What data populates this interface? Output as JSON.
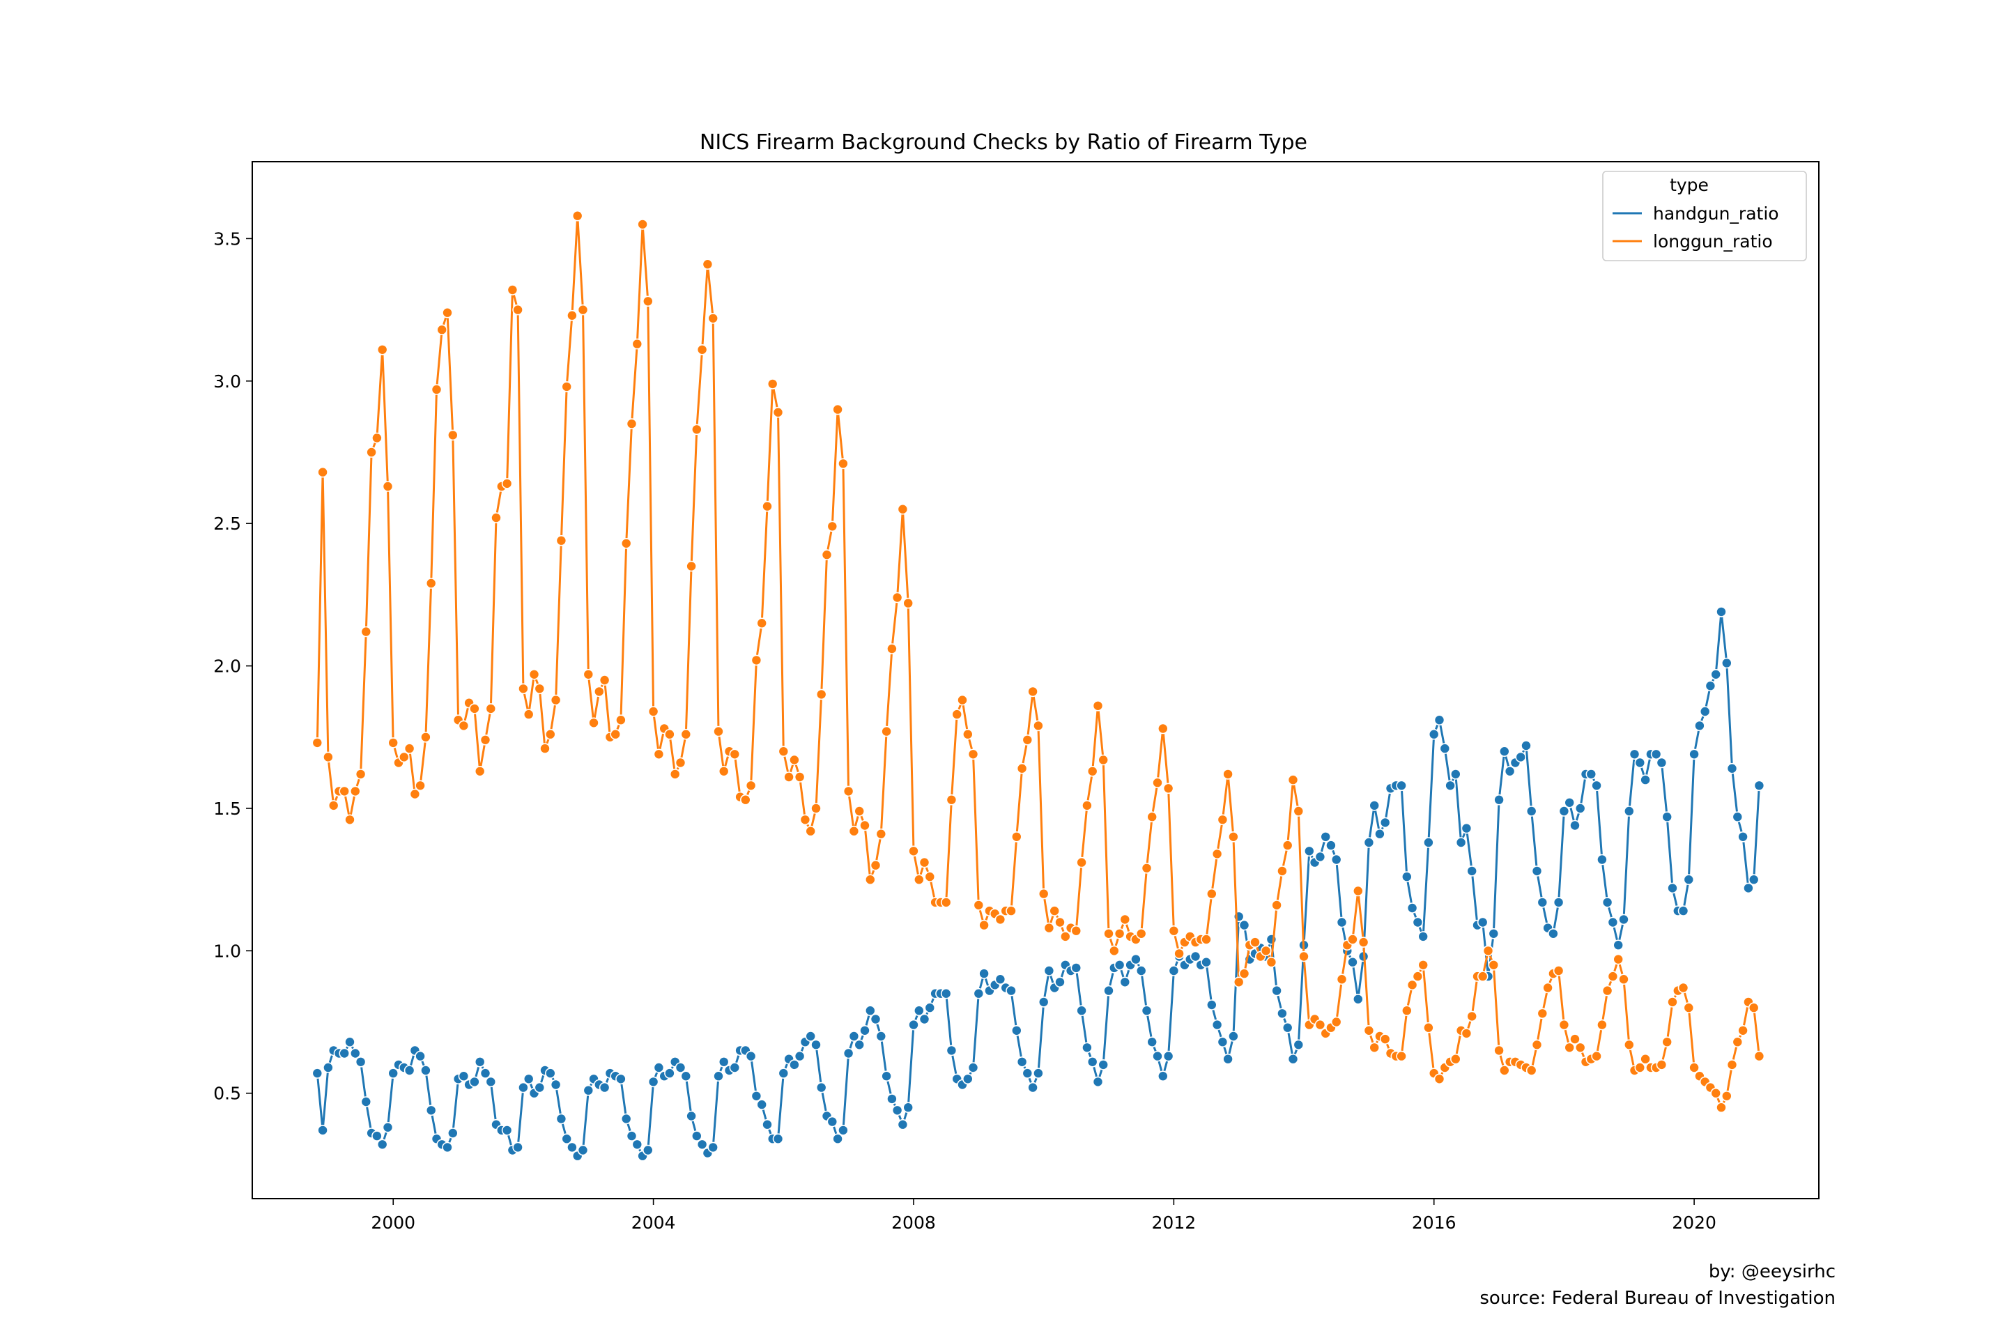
{
  "chart_data": {
    "type": "line",
    "title": "NICS Firearm Background Checks by Ratio of Firearm Type",
    "xlabel": "",
    "ylabel": "",
    "x_ticks": [
      "2000",
      "2004",
      "2008",
      "2012",
      "2016",
      "2020"
    ],
    "y_ticks": [
      "0.5",
      "1.0",
      "1.5",
      "2.0",
      "2.5",
      "3.0",
      "3.5"
    ],
    "ylim": [
      0.13,
      3.77
    ],
    "xlim": [
      "1997-11",
      "2021-12"
    ],
    "x_start": "1998-11",
    "x_end": "2021-01",
    "x_frequency": "monthly",
    "grid": false,
    "marker": "circle",
    "legend": {
      "title": "type",
      "position": "top-right"
    },
    "series": [
      {
        "name": "handgun_ratio",
        "color": "#1f77b4",
        "values": [
          0.57,
          0.37,
          0.59,
          0.65,
          0.64,
          0.64,
          0.68,
          0.64,
          0.61,
          0.47,
          0.36,
          0.35,
          0.32,
          0.38,
          0.57,
          0.6,
          0.59,
          0.58,
          0.65,
          0.63,
          0.58,
          0.44,
          0.34,
          0.32,
          0.31,
          0.36,
          0.55,
          0.56,
          0.53,
          0.54,
          0.61,
          0.57,
          0.54,
          0.39,
          0.37,
          0.37,
          0.3,
          0.31,
          0.52,
          0.55,
          0.5,
          0.52,
          0.58,
          0.57,
          0.53,
          0.41,
          0.34,
          0.31,
          0.28,
          0.3,
          0.51,
          0.55,
          0.53,
          0.52,
          0.57,
          0.56,
          0.55,
          0.41,
          0.35,
          0.32,
          0.28,
          0.3,
          0.54,
          0.59,
          0.56,
          0.57,
          0.61,
          0.59,
          0.56,
          0.42,
          0.35,
          0.32,
          0.29,
          0.31,
          0.56,
          0.61,
          0.58,
          0.59,
          0.65,
          0.65,
          0.63,
          0.49,
          0.46,
          0.39,
          0.34,
          0.34,
          0.57,
          0.62,
          0.6,
          0.63,
          0.68,
          0.7,
          0.67,
          0.52,
          0.42,
          0.4,
          0.34,
          0.37,
          0.64,
          0.7,
          0.67,
          0.72,
          0.79,
          0.76,
          0.7,
          0.56,
          0.48,
          0.44,
          0.39,
          0.45,
          0.74,
          0.79,
          0.76,
          0.8,
          0.85,
          0.85,
          0.85,
          0.65,
          0.55,
          0.53,
          0.55,
          0.59,
          0.85,
          0.92,
          0.86,
          0.88,
          0.9,
          0.87,
          0.86,
          0.72,
          0.61,
          0.57,
          0.52,
          0.57,
          0.82,
          0.93,
          0.87,
          0.89,
          0.95,
          0.93,
          0.94,
          0.79,
          0.66,
          0.61,
          0.54,
          0.6,
          0.86,
          0.94,
          0.95,
          0.89,
          0.95,
          0.97,
          0.93,
          0.79,
          0.68,
          0.63,
          0.56,
          0.63,
          0.93,
          0.98,
          0.95,
          0.97,
          0.98,
          0.95,
          0.96,
          0.81,
          0.74,
          0.68,
          0.62,
          0.7,
          1.12,
          1.09,
          0.97,
          0.99,
          1.01,
          0.98,
          1.04,
          0.86,
          0.78,
          0.73,
          0.62,
          0.67,
          1.02,
          1.35,
          1.31,
          1.33,
          1.4,
          1.37,
          1.32,
          1.1,
          1.0,
          0.96,
          0.83,
          0.98,
          1.38,
          1.51,
          1.41,
          1.45,
          1.57,
          1.58,
          1.58,
          1.26,
          1.15,
          1.1,
          1.05,
          1.38,
          1.76,
          1.81,
          1.71,
          1.58,
          1.62,
          1.38,
          1.43,
          1.28,
          1.09,
          1.1,
          0.91,
          1.06,
          1.53,
          1.7,
          1.63,
          1.66,
          1.68,
          1.72,
          1.49,
          1.28,
          1.17,
          1.08,
          1.06,
          1.17,
          1.49,
          1.52,
          1.44,
          1.5,
          1.62,
          1.62,
          1.58,
          1.32,
          1.17,
          1.1,
          1.02,
          1.11,
          1.49,
          1.69,
          1.66,
          1.6,
          1.69,
          1.69,
          1.66,
          1.47,
          1.22,
          1.14,
          1.14,
          1.25,
          1.69,
          1.79,
          1.84,
          1.93,
          1.97,
          2.19,
          2.01,
          1.64,
          1.47,
          1.4,
          1.22,
          1.25,
          1.58
        ]
      },
      {
        "name": "longgun_ratio",
        "color": "#ff7f0e",
        "values": [
          1.73,
          2.68,
          1.68,
          1.51,
          1.56,
          1.56,
          1.46,
          1.56,
          1.62,
          2.12,
          2.75,
          2.8,
          3.11,
          2.63,
          1.73,
          1.66,
          1.68,
          1.71,
          1.55,
          1.58,
          1.75,
          2.29,
          2.97,
          3.18,
          3.24,
          2.81,
          1.81,
          1.79,
          1.87,
          1.85,
          1.63,
          1.74,
          1.85,
          2.52,
          2.63,
          2.64,
          3.32,
          3.25,
          1.92,
          1.83,
          1.97,
          1.92,
          1.71,
          1.76,
          1.88,
          2.44,
          2.98,
          3.23,
          3.58,
          3.25,
          1.97,
          1.8,
          1.91,
          1.95,
          1.75,
          1.76,
          1.81,
          2.43,
          2.85,
          3.13,
          3.55,
          3.28,
          1.84,
          1.69,
          1.78,
          1.76,
          1.62,
          1.66,
          1.76,
          2.35,
          2.83,
          3.11,
          3.41,
          3.22,
          1.77,
          1.63,
          1.7,
          1.69,
          1.54,
          1.53,
          1.58,
          2.02,
          2.15,
          2.56,
          2.99,
          2.89,
          1.7,
          1.61,
          1.67,
          1.61,
          1.46,
          1.42,
          1.5,
          1.9,
          2.39,
          2.49,
          2.9,
          2.71,
          1.56,
          1.42,
          1.49,
          1.44,
          1.25,
          1.3,
          1.41,
          1.77,
          2.06,
          2.24,
          2.55,
          2.22,
          1.35,
          1.25,
          1.31,
          1.26,
          1.17,
          1.17,
          1.17,
          1.53,
          1.83,
          1.88,
          1.76,
          1.69,
          1.16,
          1.09,
          1.14,
          1.13,
          1.11,
          1.14,
          1.14,
          1.4,
          1.64,
          1.74,
          1.91,
          1.79,
          1.2,
          1.08,
          1.14,
          1.1,
          1.05,
          1.08,
          1.07,
          1.31,
          1.51,
          1.63,
          1.86,
          1.67,
          1.06,
          1.0,
          1.06,
          1.11,
          1.05,
          1.04,
          1.06,
          1.29,
          1.47,
          1.59,
          1.78,
          1.57,
          1.07,
          0.99,
          1.03,
          1.05,
          1.03,
          1.04,
          1.04,
          1.2,
          1.34,
          1.46,
          1.62,
          1.4,
          0.89,
          0.92,
          1.02,
          1.03,
          0.98,
          1.0,
          0.96,
          1.16,
          1.28,
          1.37,
          1.6,
          1.49,
          0.98,
          0.74,
          0.76,
          0.74,
          0.71,
          0.73,
          0.75,
          0.9,
          1.02,
          1.04,
          1.21,
          1.03,
          0.72,
          0.66,
          0.7,
          0.69,
          0.64,
          0.63,
          0.63,
          0.79,
          0.88,
          0.91,
          0.95,
          0.73,
          0.57,
          0.55,
          0.59,
          0.61,
          0.62,
          0.72,
          0.71,
          0.77,
          0.91,
          0.91,
          1.0,
          0.95,
          0.65,
          0.58,
          0.61,
          0.61,
          0.6,
          0.59,
          0.58,
          0.67,
          0.78,
          0.87,
          0.92,
          0.93,
          0.74,
          0.66,
          0.69,
          0.66,
          0.61,
          0.62,
          0.63,
          0.74,
          0.86,
          0.91,
          0.97,
          0.9,
          0.67,
          0.58,
          0.59,
          0.62,
          0.59,
          0.59,
          0.6,
          0.68,
          0.82,
          0.86,
          0.87,
          0.8,
          0.59,
          0.56,
          0.54,
          0.52,
          0.5,
          0.45,
          0.49,
          0.6,
          0.68,
          0.72,
          0.82,
          0.8,
          0.63
        ]
      }
    ]
  },
  "footer": {
    "byline": "by: @eeysirhc",
    "source": "source: Federal Bureau of Investigation"
  }
}
